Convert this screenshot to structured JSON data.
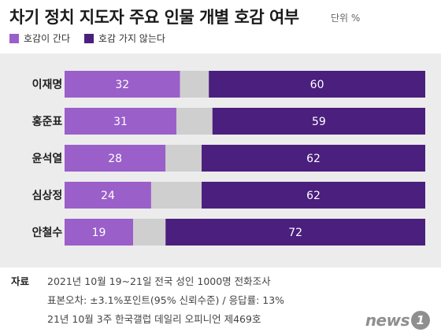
{
  "chart_data": {
    "type": "bar",
    "orientation": "horizontal",
    "stacked": true,
    "title": "차기 정치 지도자 주요 인물 개별 호감 여부",
    "unit": "단위 %",
    "categories": [
      "이재명",
      "홍준표",
      "윤석열",
      "심상정",
      "안철수"
    ],
    "series": [
      {
        "name": "호감이 간다",
        "color": "#9a5fc9",
        "values": [
          32,
          31,
          28,
          24,
          19
        ]
      },
      {
        "name": "",
        "color": "#cfcfcf",
        "values": [
          8,
          10,
          10,
          14,
          9
        ]
      },
      {
        "name": "호감 가지 않는다",
        "color": "#4a1f7d",
        "values": [
          60,
          59,
          62,
          62,
          72
        ]
      }
    ],
    "xlim": [
      0,
      100
    ],
    "legend": "top-left"
  },
  "footer": {
    "label": "자료",
    "line1": "2021년 10월 19~21일 전국 성인 1000명 전화조사",
    "line2": "표본오차: ±3.1%포인트(95% 신뢰수준) / 응답률: 13%",
    "line3": "21년 10월 3주 한국갤럽 데일리 오피니언 제469호"
  },
  "logo": {
    "text": "news",
    "mark": "1"
  }
}
